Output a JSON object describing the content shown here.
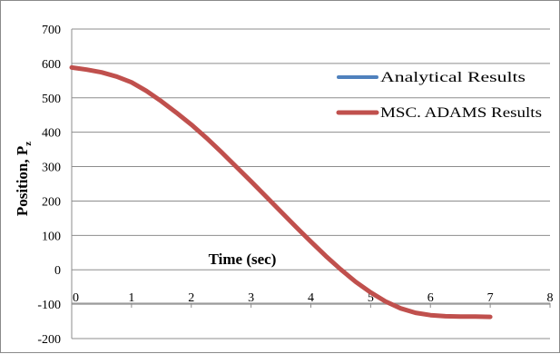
{
  "chart_data": {
    "type": "line",
    "xlabel": "Time (sec)",
    "ylabel": "Position, Pz",
    "ylabel_main": "Position, P",
    "ylabel_sub": "z",
    "xlim": [
      0,
      8
    ],
    "ylim": [
      -200,
      700
    ],
    "x_ticks": [
      "0",
      "1",
      "2",
      "3",
      "4",
      "5",
      "6",
      "7",
      "8"
    ],
    "y_ticks": [
      "700",
      "600",
      "500",
      "400",
      "300",
      "200",
      "100",
      "0",
      "-100",
      "-200"
    ],
    "grid": "horizontal",
    "legend_position": "right",
    "series": [
      {
        "name": "Analytical Results",
        "color": "#4f81bd",
        "x": [
          0,
          0.25,
          0.5,
          0.75,
          1,
          1.25,
          1.5,
          1.75,
          2,
          2.25,
          2.5,
          2.75,
          3,
          3.25,
          3.5,
          3.75,
          4,
          4.25,
          4.5,
          4.75,
          5,
          5.25,
          5.5,
          5.75,
          6,
          6.25,
          6.5,
          6.75,
          7
        ],
        "y": [
          588,
          582,
          574,
          562,
          545,
          520,
          490,
          457,
          422,
          384,
          343,
          300,
          257,
          213,
          169,
          125,
          82,
          40,
          1,
          -35,
          -66,
          -92,
          -112,
          -125,
          -132,
          -135,
          -136,
          -136,
          -137
        ]
      },
      {
        "name": "MSC. ADAMS Results",
        "color": "#c0504d",
        "x": [
          0,
          0.25,
          0.5,
          0.75,
          1,
          1.25,
          1.5,
          1.75,
          2,
          2.25,
          2.5,
          2.75,
          3,
          3.25,
          3.5,
          3.75,
          4,
          4.25,
          4.5,
          4.75,
          5,
          5.25,
          5.5,
          5.75,
          6,
          6.25,
          6.5,
          6.75,
          7
        ],
        "y": [
          588,
          582,
          574,
          562,
          545,
          520,
          490,
          457,
          422,
          384,
          343,
          300,
          257,
          213,
          169,
          125,
          82,
          40,
          1,
          -35,
          -66,
          -92,
          -112,
          -125,
          -132,
          -135,
          -136,
          -136,
          -137
        ]
      }
    ]
  }
}
